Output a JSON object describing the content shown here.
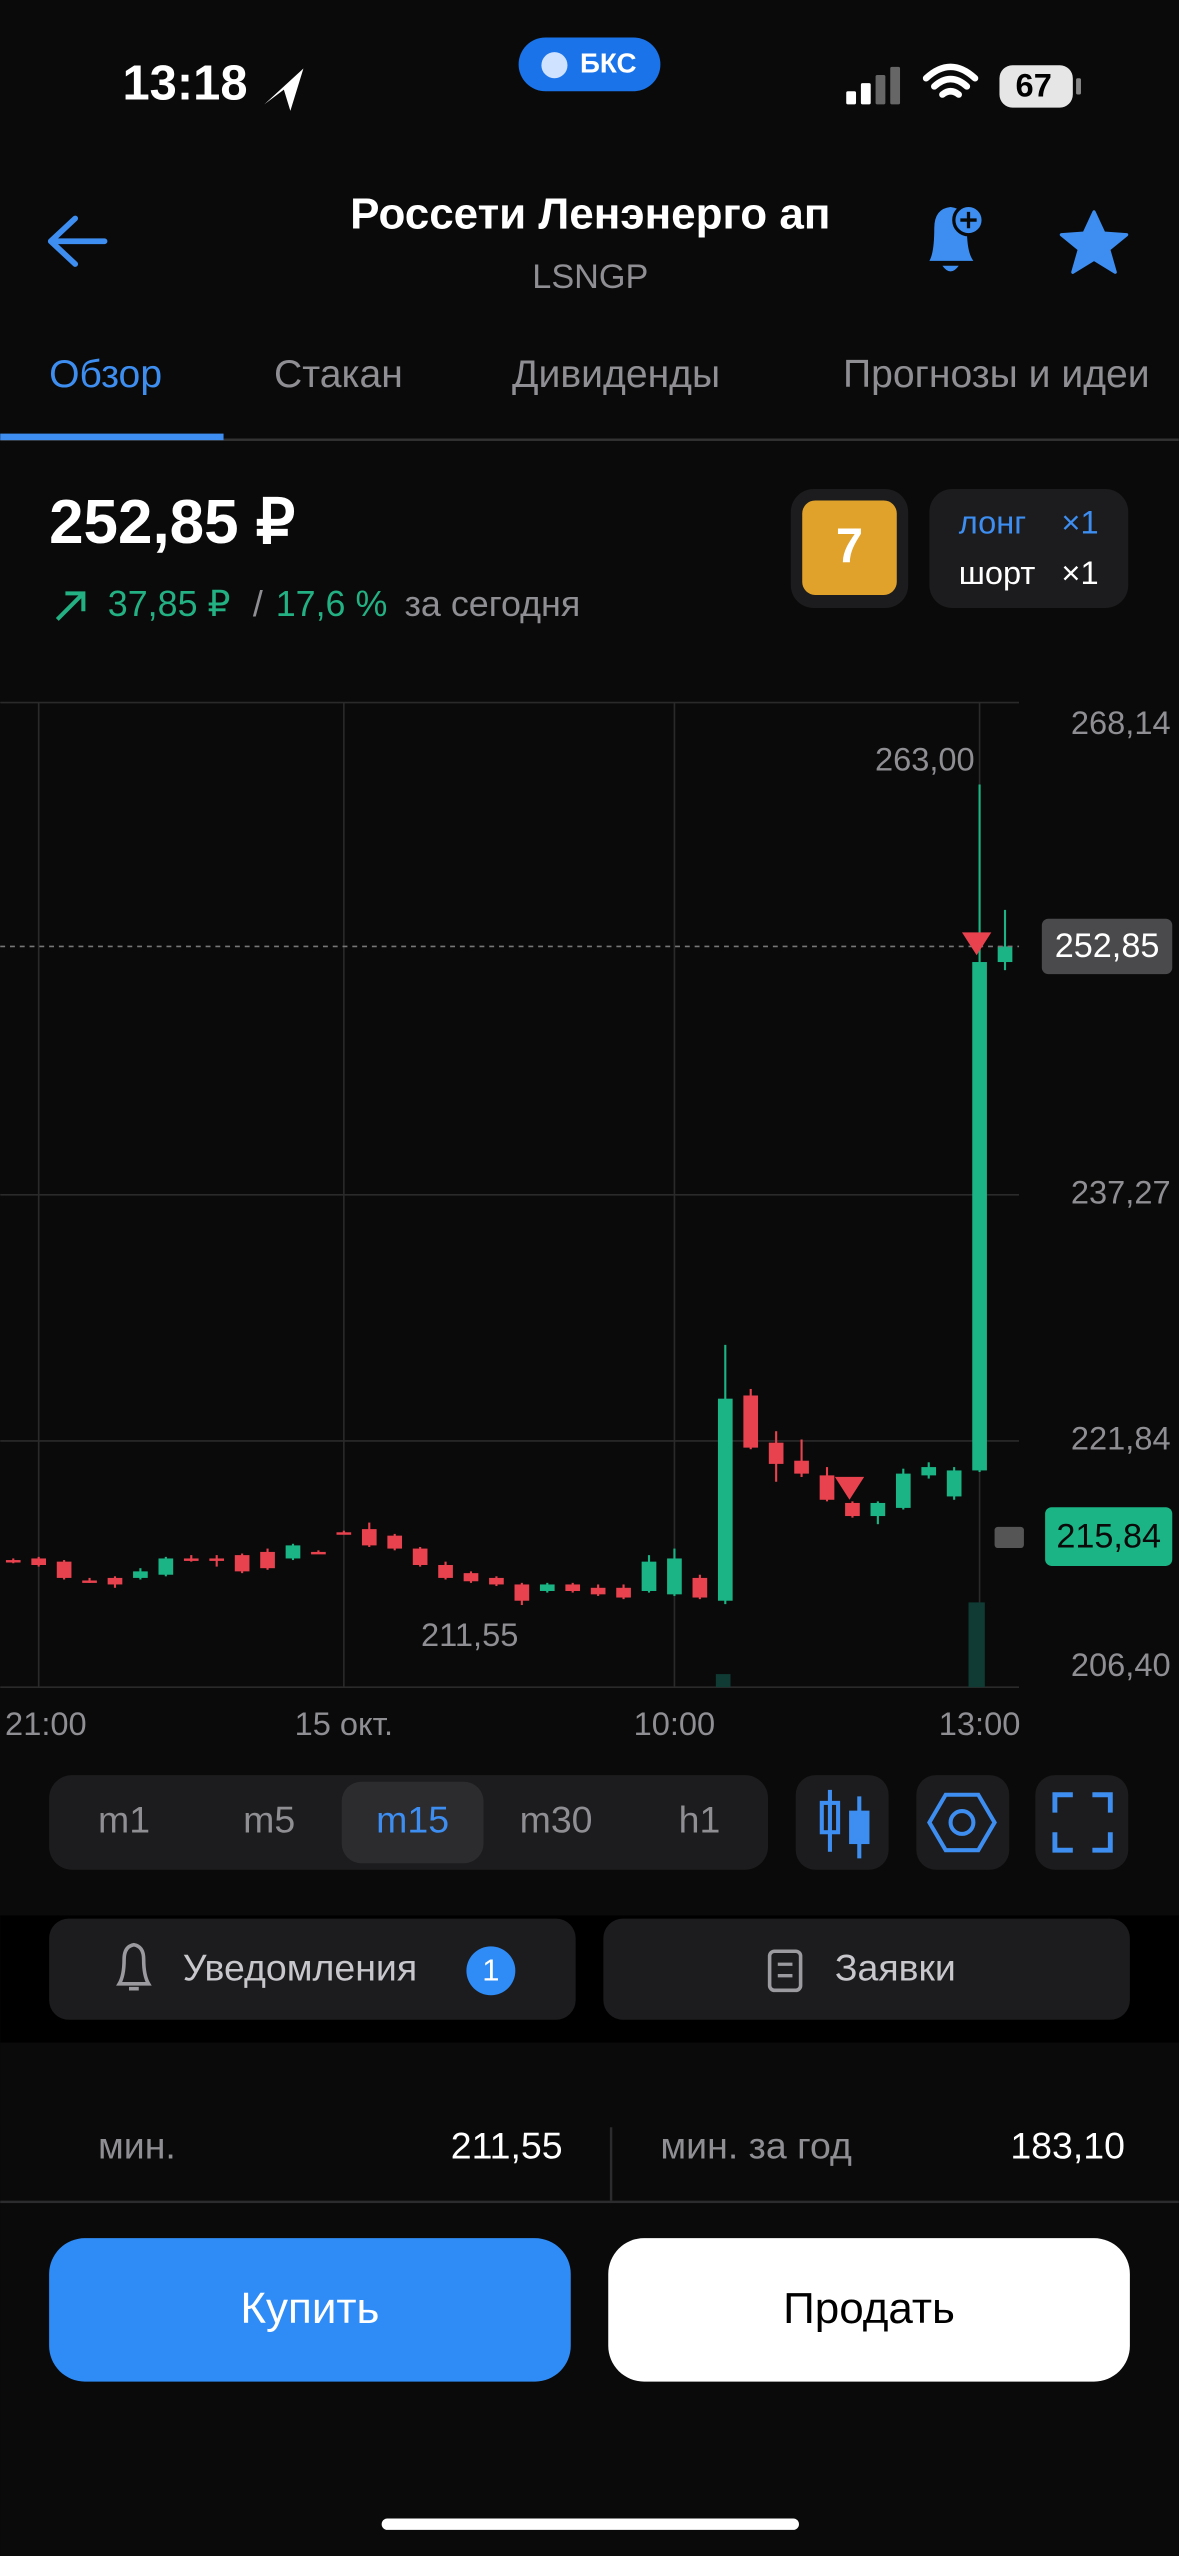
{
  "status_bar": {
    "time": "13:18",
    "badge": "БКС",
    "battery": "67"
  },
  "header": {
    "title": "Россети Ленэнерго ап",
    "ticker": "LSNGP"
  },
  "tabs": [
    "Обзор",
    "Стакан",
    "Дивиденды",
    "Прогнозы и идеи"
  ],
  "quote": {
    "price": "252,85 ₽",
    "change": "37,85 ₽",
    "separator": "/",
    "change_pct": "17,6 %",
    "period": "за сегодня",
    "rating": "7",
    "long_label": "лонг",
    "long_count": "×1",
    "short_label": "шорт",
    "short_count": "×1"
  },
  "chart": {
    "type": "candlestick",
    "up_color": "#1bb585",
    "down_color": "#e8424f",
    "grid": true,
    "ylim": [
      206.4,
      268.14
    ],
    "yticks": [
      {
        "value": 206.4,
        "label": "206,40"
      },
      {
        "value": 221.84,
        "label": "221,84"
      },
      {
        "value": 237.27,
        "label": "237,27"
      },
      {
        "value": 268.14,
        "label": "268,14"
      }
    ],
    "categories": [
      null,
      "21:00",
      null,
      null,
      null,
      null,
      null,
      null,
      null,
      null,
      null,
      null,
      null,
      "15 окт.",
      null,
      null,
      null,
      null,
      null,
      null,
      null,
      null,
      null,
      null,
      null,
      null,
      "10:00",
      null,
      null,
      null,
      null,
      null,
      null,
      null,
      null,
      null,
      null,
      null,
      "13:00",
      null
    ],
    "candles": [
      {
        "open": 214.37,
        "high": 214.47,
        "low": 214.17,
        "close": 214.27
      },
      {
        "open": 214.47,
        "high": 214.57,
        "low": 213.96,
        "close": 214.06
      },
      {
        "open": 214.27,
        "high": 214.37,
        "low": 213.15,
        "close": 213.25
      },
      {
        "open": 213.09,
        "high": 213.25,
        "low": 212.94,
        "close": 213.04
      },
      {
        "open": 213.25,
        "high": 213.35,
        "low": 212.63,
        "close": 212.84
      },
      {
        "open": 213.25,
        "high": 213.86,
        "low": 213.15,
        "close": 213.66
      },
      {
        "open": 213.45,
        "high": 214.57,
        "low": 213.35,
        "close": 214.47
      },
      {
        "open": 214.47,
        "high": 214.68,
        "low": 214.27,
        "close": 214.37
      },
      {
        "open": 214.47,
        "high": 214.68,
        "low": 213.96,
        "close": 214.42
      },
      {
        "open": 214.68,
        "high": 214.78,
        "low": 213.55,
        "close": 213.66
      },
      {
        "open": 214.88,
        "high": 215.09,
        "low": 213.76,
        "close": 213.86
      },
      {
        "open": 214.47,
        "high": 215.39,
        "low": 214.37,
        "close": 215.29
      },
      {
        "open": 214.88,
        "high": 214.98,
        "low": 214.78,
        "close": 214.83
      },
      {
        "open": 216.11,
        "high": 216.21,
        "low": 216.01,
        "close": 216.06
      },
      {
        "open": 216.31,
        "high": 216.72,
        "low": 215.19,
        "close": 215.29
      },
      {
        "open": 215.9,
        "high": 216.01,
        "low": 214.98,
        "close": 215.09
      },
      {
        "open": 215.09,
        "high": 215.19,
        "low": 213.96,
        "close": 214.06
      },
      {
        "open": 214.06,
        "high": 214.27,
        "low": 213.15,
        "close": 213.25
      },
      {
        "open": 213.55,
        "high": 213.66,
        "low": 212.94,
        "close": 213.04
      },
      {
        "open": 213.25,
        "high": 213.35,
        "low": 212.74,
        "close": 212.84
      },
      {
        "open": 212.84,
        "high": 212.94,
        "low": 211.55,
        "close": 211.82
      },
      {
        "open": 212.43,
        "high": 212.94,
        "low": 212.33,
        "close": 212.84
      },
      {
        "open": 212.84,
        "high": 212.94,
        "low": 212.33,
        "close": 212.43
      },
      {
        "open": 212.63,
        "high": 212.84,
        "low": 212.12,
        "close": 212.22
      },
      {
        "open": 212.63,
        "high": 212.84,
        "low": 211.92,
        "close": 212.02
      },
      {
        "open": 212.43,
        "high": 214.68,
        "low": 212.33,
        "close": 214.27
      },
      {
        "open": 212.22,
        "high": 215.09,
        "low": 212.12,
        "close": 214.47
      },
      {
        "open": 213.25,
        "high": 213.45,
        "low": 211.92,
        "close": 212.02
      },
      {
        "open": 211.82,
        "high": 227.86,
        "low": 211.61,
        "close": 224.49
      },
      {
        "open": 224.69,
        "high": 225.1,
        "low": 221.32,
        "close": 221.42
      },
      {
        "open": 221.73,
        "high": 222.45,
        "low": 219.28,
        "close": 220.4
      },
      {
        "open": 220.6,
        "high": 221.93,
        "low": 219.58,
        "close": 219.79
      },
      {
        "open": 219.68,
        "high": 220.2,
        "low": 218.05,
        "close": 218.15
      },
      {
        "open": 217.95,
        "high": 218.05,
        "low": 217.03,
        "close": 217.13
      },
      {
        "open": 217.13,
        "high": 218.05,
        "low": 216.62,
        "close": 217.95
      },
      {
        "open": 217.64,
        "high": 220.1,
        "low": 217.54,
        "close": 219.79
      },
      {
        "open": 219.68,
        "high": 220.5,
        "low": 219.48,
        "close": 220.2
      },
      {
        "open": 218.36,
        "high": 220.2,
        "low": 218.15,
        "close": 219.99
      },
      {
        "open": 219.99,
        "high": 263.0,
        "low": 219.89,
        "close": 251.87
      },
      {
        "open": 251.87,
        "high": 255.14,
        "low": 251.36,
        "close": 252.85
      }
    ],
    "max_label": {
      "value": 263.0,
      "label": "263,00"
    },
    "min_label": {
      "value": 211.55,
      "label": "211,55"
    },
    "last_price": {
      "value": 252.85,
      "label": "252,85"
    },
    "order_price": {
      "value": 215.84,
      "label": "215,84"
    }
  },
  "timeframes": [
    {
      "label": "m1"
    },
    {
      "label": "m5"
    },
    {
      "label": "m15",
      "selected": true
    },
    {
      "label": "m30"
    },
    {
      "label": "h1"
    }
  ],
  "actions": {
    "alerts": "Уведомления",
    "alerts_count": "1",
    "orders": "Заявки"
  },
  "stats": [
    {
      "label": "мин.",
      "value": "211,55"
    },
    {
      "label": "мин. за год",
      "value": "183,10"
    }
  ],
  "buttons": {
    "buy": "Купить",
    "sell": "Продать"
  }
}
